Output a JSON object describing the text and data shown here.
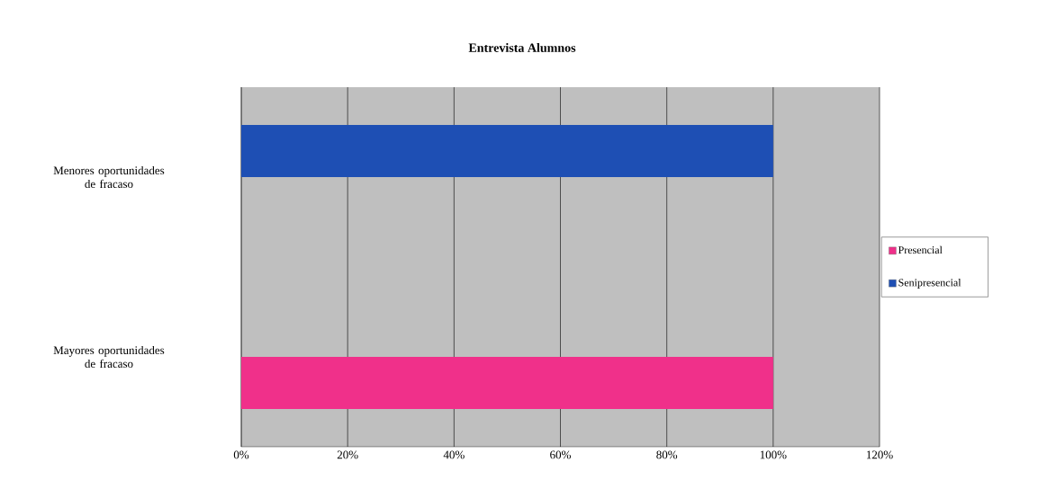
{
  "chart_data": {
    "type": "bar",
    "orientation": "horizontal",
    "title": "Entrevista Alumnos",
    "categories": [
      "Menores oportunidades de fracaso",
      "Mayores oportunidades de fracaso"
    ],
    "series": [
      {
        "name": "Presencial",
        "color": "#f0308a",
        "values": [
          0,
          100
        ]
      },
      {
        "name": "Senipresencial",
        "color": "#1e4fb4",
        "values": [
          100,
          0
        ]
      }
    ],
    "xlim": [
      0,
      120
    ],
    "xticks": [
      {
        "value": 0,
        "label": "0%"
      },
      {
        "value": 20,
        "label": "20%"
      },
      {
        "value": 40,
        "label": "40%"
      },
      {
        "value": 60,
        "label": "60%"
      },
      {
        "value": 80,
        "label": "80%"
      },
      {
        "value": 100,
        "label": "100%"
      },
      {
        "value": 120,
        "label": "120%"
      }
    ],
    "grid": "x",
    "legend": "right"
  }
}
